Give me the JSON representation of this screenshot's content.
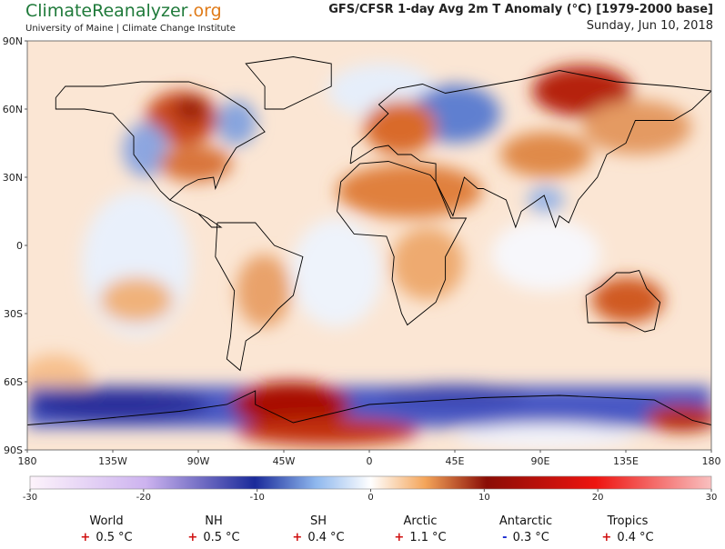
{
  "header": {
    "site_name": "ClimateReanalyzer",
    "site_suffix": ".org",
    "affiliation": "University of Maine | Climate Change Institute",
    "title": "GFS/CFSR 1-day Avg 2m T Anomaly (°C) [1979-2000 base]",
    "date": "Sunday, Jun 10, 2018"
  },
  "map": {
    "lat_labels": [
      {
        "value": 90,
        "label": "90N"
      },
      {
        "value": 60,
        "label": "60N"
      },
      {
        "value": 30,
        "label": "30N"
      },
      0,
      {
        "value": -30,
        "label": "30S"
      },
      {
        "value": -60,
        "label": "60S"
      },
      {
        "value": -90,
        "label": "90S"
      }
    ],
    "lon_labels": [
      {
        "value": -180,
        "label": "180"
      },
      {
        "value": -135,
        "label": "135W"
      },
      {
        "value": -90,
        "label": "90W"
      },
      {
        "value": -45,
        "label": "45W"
      },
      0,
      {
        "value": 45,
        "label": "45E"
      },
      {
        "value": 90,
        "label": "90E"
      },
      {
        "value": 135,
        "label": "135E"
      },
      {
        "value": 180,
        "label": "180"
      }
    ]
  },
  "colorbar": {
    "lim": [
      -30,
      30
    ],
    "ticks": [
      -30,
      -20,
      -10,
      0,
      10,
      20,
      30
    ]
  },
  "stats": [
    {
      "name": "World",
      "sign": "+",
      "value": 0.5,
      "unit": "°C"
    },
    {
      "name": "NH",
      "sign": "+",
      "value": 0.5,
      "unit": "°C"
    },
    {
      "name": "SH",
      "sign": "+",
      "value": 0.4,
      "unit": "°C"
    },
    {
      "name": "Arctic",
      "sign": "+",
      "value": 1.1,
      "unit": "°C"
    },
    {
      "name": "Antarctic",
      "sign": "-",
      "value": 0.3,
      "unit": "°C"
    },
    {
      "name": "Tropics",
      "sign": "+",
      "value": 0.4,
      "unit": "°C"
    }
  ]
}
